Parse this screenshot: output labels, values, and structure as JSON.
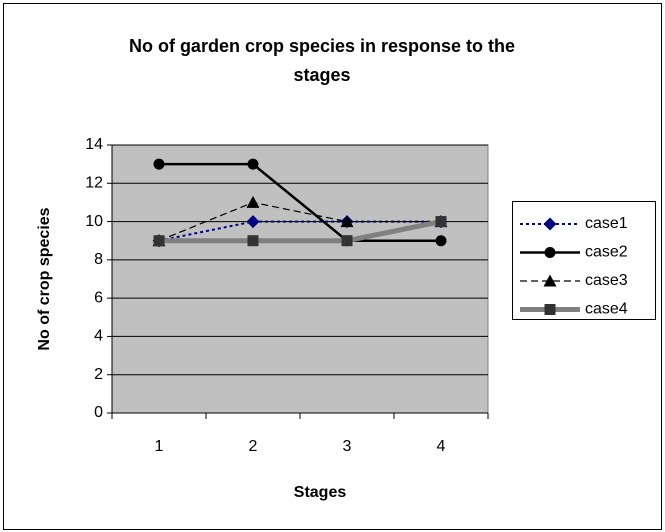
{
  "chart_data": {
    "type": "line",
    "title": "No of garden crop species in response to the stages",
    "x_label": "Stages",
    "y_label": "No of crop species",
    "categories": [
      "1",
      "2",
      "3",
      "4"
    ],
    "series": [
      {
        "name": "case1",
        "color": "#000080",
        "values": [
          9,
          10,
          10,
          10
        ]
      },
      {
        "name": "case2",
        "color": "#000000",
        "values": [
          13,
          13,
          9,
          9
        ]
      },
      {
        "name": "case3",
        "color": "#000000",
        "values": [
          9,
          11,
          10,
          10
        ]
      },
      {
        "name": "case4",
        "color": "#808080",
        "values": [
          9,
          9,
          9,
          10
        ]
      }
    ],
    "ylim": [
      0,
      14
    ],
    "yticks": [
      0,
      2,
      4,
      6,
      8,
      10,
      12,
      14
    ],
    "grid": true,
    "legend": "right"
  }
}
